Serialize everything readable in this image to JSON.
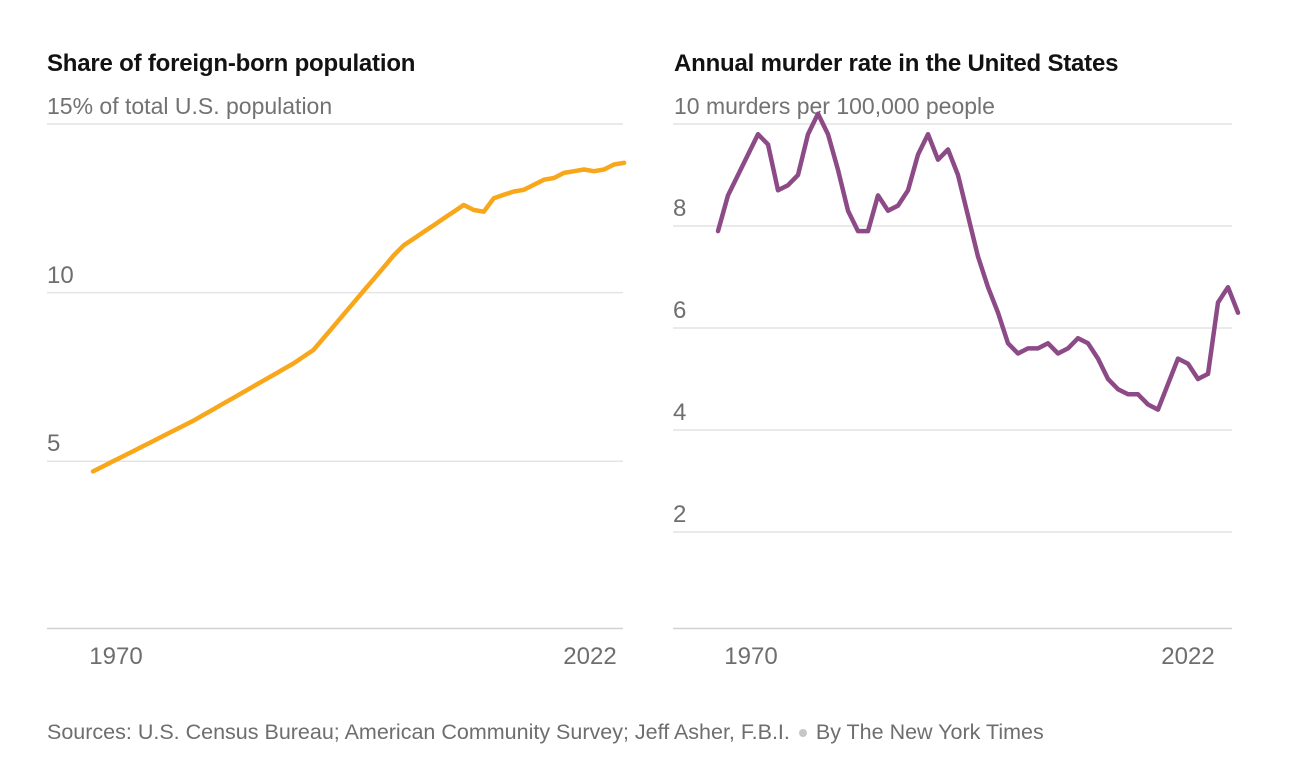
{
  "chart_data": [
    {
      "type": "line",
      "title": "Share of foreign-born population",
      "subtitle": "15% of total U.S. population",
      "color": "#F8A71B",
      "x": [
        1970,
        1971,
        1972,
        1973,
        1974,
        1975,
        1976,
        1977,
        1978,
        1979,
        1980,
        1981,
        1982,
        1983,
        1984,
        1985,
        1986,
        1987,
        1988,
        1989,
        1990,
        1991,
        1992,
        1993,
        1994,
        1995,
        1996,
        1997,
        1998,
        1999,
        2000,
        2001,
        2002,
        2003,
        2004,
        2005,
        2006,
        2007,
        2008,
        2009,
        2010,
        2011,
        2012,
        2013,
        2014,
        2015,
        2016,
        2017,
        2018,
        2019,
        2020,
        2021,
        2022,
        2023
      ],
      "values": [
        4.7,
        4.85,
        5.0,
        5.15,
        5.3,
        5.45,
        5.6,
        5.75,
        5.9,
        6.05,
        6.2,
        6.37,
        6.54,
        6.71,
        6.88,
        7.05,
        7.22,
        7.39,
        7.56,
        7.73,
        7.9,
        8.1,
        8.3,
        8.65,
        9.0,
        9.35,
        9.7,
        10.05,
        10.4,
        10.75,
        11.1,
        11.4,
        11.6,
        11.8,
        12.0,
        12.2,
        12.4,
        12.6,
        12.45,
        12.4,
        12.8,
        12.9,
        13.0,
        13.05,
        13.2,
        13.35,
        13.4,
        13.55,
        13.6,
        13.65,
        13.6,
        13.65,
        13.8,
        13.85
      ],
      "ylim": [
        0,
        15
      ],
      "xlim": [
        1970,
        2023
      ],
      "grid": true,
      "legend": "none",
      "gridline_values": [
        15,
        10,
        5
      ],
      "ytick_labels": [
        "10",
        "5"
      ],
      "xtick_labels": [
        "1970",
        "2022"
      ]
    },
    {
      "type": "line",
      "title": "Annual murder rate in the United States",
      "subtitle": "10 murders per 100,000 people",
      "color": "#8C4A87",
      "x": [
        1970,
        1971,
        1972,
        1973,
        1974,
        1975,
        1976,
        1977,
        1978,
        1979,
        1980,
        1981,
        1982,
        1983,
        1984,
        1985,
        1986,
        1987,
        1988,
        1989,
        1990,
        1991,
        1992,
        1993,
        1994,
        1995,
        1996,
        1997,
        1998,
        1999,
        2000,
        2001,
        2002,
        2003,
        2004,
        2005,
        2006,
        2007,
        2008,
        2009,
        2010,
        2011,
        2012,
        2013,
        2014,
        2015,
        2016,
        2017,
        2018,
        2019,
        2020,
        2021,
        2022
      ],
      "values": [
        7.9,
        8.6,
        9.0,
        9.4,
        9.8,
        9.6,
        8.7,
        8.8,
        9.0,
        9.8,
        10.2,
        9.8,
        9.1,
        8.3,
        7.9,
        7.9,
        8.6,
        8.3,
        8.4,
        8.7,
        9.4,
        9.8,
        9.3,
        9.5,
        9.0,
        8.2,
        7.4,
        6.8,
        6.3,
        5.7,
        5.5,
        5.6,
        5.6,
        5.7,
        5.5,
        5.6,
        5.8,
        5.7,
        5.4,
        5.0,
        4.8,
        4.7,
        4.7,
        4.5,
        4.4,
        4.9,
        5.4,
        5.3,
        5.0,
        5.1,
        6.5,
        6.8,
        6.3
      ],
      "ylim": [
        0,
        10.3
      ],
      "xlim": [
        1970,
        2022
      ],
      "grid": true,
      "legend": "none",
      "gridline_values": [
        10,
        8,
        6,
        4,
        2
      ],
      "ytick_labels": [
        "8",
        "6",
        "4",
        "2"
      ],
      "xtick_labels": [
        "1970",
        "2022"
      ]
    }
  ],
  "footer": {
    "sources": "Sources: U.S. Census Bureau; American Community Survey; Jeff Asher, F.B.I.",
    "byline": "By The New York Times"
  },
  "colors": {
    "foreign_born_line": "#F8A71B",
    "murder_rate_line": "#8C4A87",
    "gridline": "#e4e4e4",
    "axis_line": "#d2d2d2",
    "title_text": "#121212",
    "muted_text": "#6e6e6e"
  }
}
